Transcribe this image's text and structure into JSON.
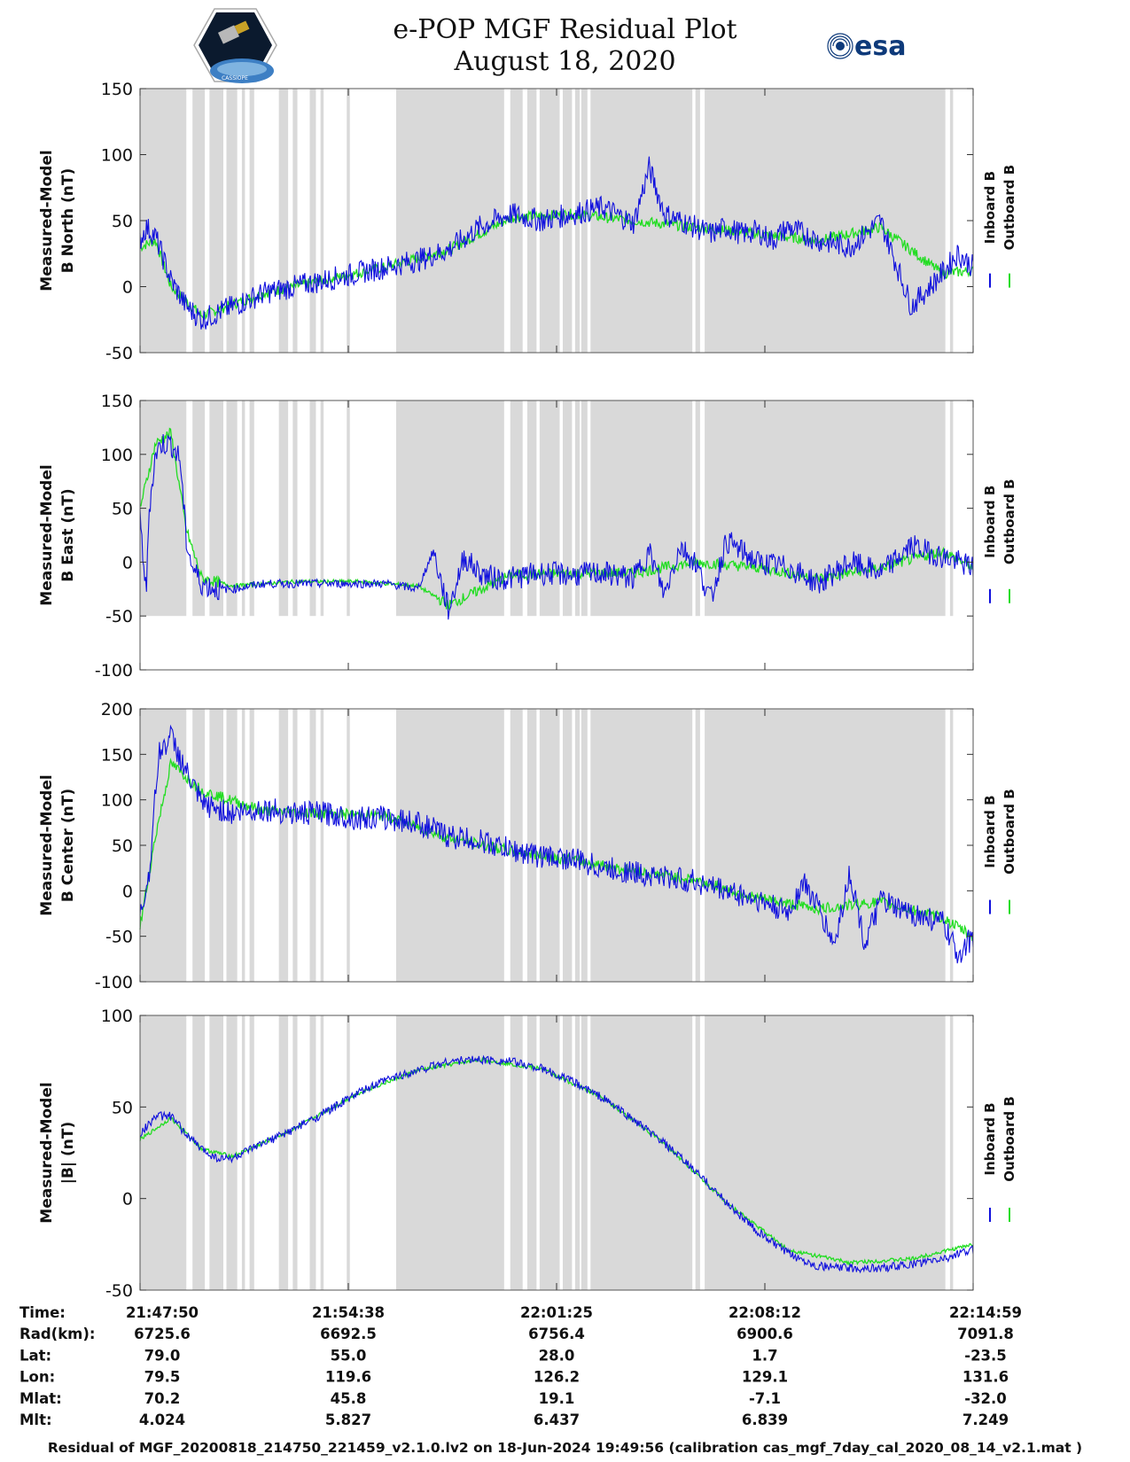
{
  "header": {
    "title_line1": "e-POP MGF Residual Plot",
    "title_line2": "August 18, 2020",
    "esa_logo_text": "esa",
    "left_logo_text": "CASSIOPE"
  },
  "legend_labels": [
    "Inboard B",
    "Outboard B"
  ],
  "colors": {
    "inboard": "#1010dd",
    "outboard": "#22dd22",
    "shade": "#d9d9d9",
    "frame": "#555555"
  },
  "chart_data": [
    {
      "type": "line",
      "ylabel_line1": "Measured-Model",
      "ylabel_line2": "B North (nT)",
      "ylim": [
        -50,
        150
      ],
      "yticks": [
        -50,
        0,
        50,
        100,
        150
      ],
      "series": [
        {
          "name": "Inboard B",
          "x": [
            0,
            0.2,
            0.5,
            1,
            1.5,
            2,
            2.5,
            3,
            4,
            5,
            6,
            7,
            8,
            9,
            10,
            11,
            11.5,
            12,
            13,
            14,
            15,
            16,
            16.5,
            17,
            17.5,
            18,
            18.5,
            19,
            19.5,
            20,
            20.5,
            21,
            22,
            23,
            24,
            25,
            26,
            26.5,
            27
          ],
          "y": [
            35,
            45,
            38,
            5,
            -15,
            -25,
            -20,
            -15,
            -5,
            0,
            5,
            10,
            15,
            20,
            28,
            45,
            50,
            55,
            50,
            55,
            60,
            48,
            90,
            55,
            50,
            45,
            40,
            45,
            40,
            42,
            35,
            45,
            35,
            30,
            50,
            -15,
            10,
            25,
            15
          ]
        },
        {
          "name": "Outboard B",
          "x": [
            0,
            0.5,
            1,
            2,
            4,
            6,
            8,
            10,
            12,
            14,
            16,
            18,
            20,
            22,
            24,
            26,
            27
          ],
          "y": [
            30,
            35,
            0,
            -22,
            -5,
            5,
            15,
            28,
            52,
            55,
            50,
            45,
            40,
            35,
            45,
            10,
            12
          ]
        }
      ]
    },
    {
      "type": "line",
      "ylabel_line1": "Measured-Model",
      "ylabel_line2": "B East (nT)",
      "ylim": [
        -100,
        150
      ],
      "yticks": [
        -100,
        -50,
        0,
        50,
        100,
        150
      ],
      "series": [
        {
          "name": "Inboard B",
          "x": [
            0,
            0.2,
            0.3,
            0.5,
            0.7,
            1,
            1.3,
            1.5,
            1.7,
            2,
            2.5,
            3,
            4,
            5,
            6,
            7,
            8,
            9,
            9.5,
            10,
            10.5,
            11,
            11.5,
            12,
            13,
            14,
            15,
            16,
            16.5,
            17,
            17.5,
            18,
            18.5,
            19,
            20,
            21,
            22,
            23,
            24,
            25,
            26,
            27
          ],
          "y": [
            40,
            -30,
            50,
            100,
            110,
            110,
            95,
            20,
            -5,
            -20,
            -25,
            -25,
            -20,
            -20,
            -20,
            -20,
            -20,
            -25,
            10,
            -45,
            5,
            -10,
            -15,
            -15,
            -10,
            -12,
            -10,
            -15,
            10,
            -30,
            15,
            0,
            -35,
            20,
            0,
            -5,
            -20,
            0,
            -10,
            15,
            5,
            -5
          ]
        },
        {
          "name": "Outboard B",
          "x": [
            0,
            0.5,
            1,
            1.5,
            2,
            3,
            5,
            7,
            9,
            10,
            12,
            14,
            16,
            18,
            20,
            22,
            24,
            26,
            27
          ],
          "y": [
            50,
            110,
            120,
            30,
            -15,
            -22,
            -18,
            -18,
            -22,
            -40,
            -12,
            -10,
            -10,
            0,
            -5,
            -15,
            -5,
            10,
            -5
          ]
        }
      ]
    },
    {
      "type": "line",
      "ylabel_line1": "Measured-Model",
      "ylabel_line2": "B Center (nT)",
      "ylim": [
        -100,
        200
      ],
      "yticks": [
        -100,
        -50,
        0,
        50,
        100,
        150,
        200
      ],
      "series": [
        {
          "name": "Inboard B",
          "x": [
            0,
            0.3,
            0.6,
            1,
            1.5,
            2,
            3,
            4,
            5,
            6,
            7,
            8,
            9,
            10,
            11,
            12,
            13,
            14,
            15,
            16,
            17,
            18,
            19,
            20,
            21,
            21.5,
            22,
            22.5,
            23,
            23.5,
            24,
            24.5,
            25,
            25.5,
            26,
            26.5,
            27
          ],
          "y": [
            -30,
            20,
            150,
            170,
            130,
            95,
            85,
            90,
            85,
            85,
            80,
            80,
            75,
            60,
            55,
            45,
            38,
            35,
            25,
            20,
            15,
            10,
            0,
            -10,
            -25,
            10,
            -20,
            -60,
            20,
            -60,
            -10,
            -20,
            -25,
            -30,
            -35,
            -70,
            -50
          ]
        },
        {
          "name": "Outboard B",
          "x": [
            0,
            0.5,
            1,
            2,
            4,
            6,
            8,
            10,
            12,
            14,
            16,
            18,
            20,
            22,
            24,
            26,
            27
          ],
          "y": [
            -40,
            60,
            140,
            110,
            88,
            85,
            82,
            58,
            44,
            34,
            22,
            12,
            -8,
            -20,
            -12,
            -30,
            -50
          ]
        }
      ]
    },
    {
      "type": "line",
      "ylabel_line1": "Measured-Model",
      "ylabel_line2": "|B| (nT)",
      "ylim": [
        -50,
        100
      ],
      "yticks": [
        -50,
        0,
        50,
        100
      ],
      "series": [
        {
          "name": "Inboard B",
          "x": [
            0,
            0.5,
            1,
            1.5,
            2,
            2.5,
            3,
            4,
            5,
            6,
            7,
            8,
            9,
            10,
            11,
            12,
            13,
            14,
            15,
            16,
            17,
            18,
            19,
            20,
            21,
            22,
            23,
            24,
            25,
            26,
            27
          ],
          "y": [
            35,
            45,
            45,
            35,
            27,
            22,
            22,
            30,
            38,
            47,
            57,
            65,
            70,
            75,
            76,
            75,
            71,
            64,
            55,
            43,
            30,
            15,
            -2,
            -18,
            -30,
            -37,
            -38,
            -38,
            -36,
            -33,
            -28
          ]
        },
        {
          "name": "Outboard B",
          "x": [
            0,
            1,
            2,
            3,
            5,
            7,
            9,
            11,
            13,
            15,
            17,
            19,
            21,
            23,
            25,
            27
          ],
          "y": [
            32,
            44,
            27,
            23,
            38,
            57,
            70,
            76,
            71,
            55,
            30,
            -2,
            -28,
            -35,
            -33,
            -25
          ]
        }
      ]
    }
  ],
  "shared_x": {
    "range": [
      0,
      27
    ],
    "shade_intervals": [
      [
        0,
        1.5
      ],
      [
        1.7,
        2.1
      ],
      [
        2.25,
        2.7
      ],
      [
        2.8,
        3.15
      ],
      [
        3.3,
        3.4
      ],
      [
        3.55,
        3.7
      ],
      [
        4.5,
        4.8
      ],
      [
        4.95,
        5.1
      ],
      [
        5.5,
        5.7
      ],
      [
        5.85,
        5.95
      ],
      [
        6.7,
        6.8
      ],
      [
        8.3,
        11.8
      ],
      [
        12.0,
        12.4
      ],
      [
        12.55,
        12.85
      ],
      [
        12.95,
        13.6
      ],
      [
        13.7,
        14.0
      ],
      [
        14.1,
        14.25
      ],
      [
        14.3,
        14.5
      ],
      [
        14.6,
        17.9
      ],
      [
        18.0,
        18.15
      ],
      [
        18.3,
        26.1
      ],
      [
        26.25,
        26.35
      ]
    ],
    "major_ticks": [
      0,
      6.75,
      13.5,
      20.25,
      27
    ]
  },
  "footer_table": {
    "row_labels": [
      "Time:",
      "Rad(km):",
      "Lat:",
      "Lon:",
      "Mlat:",
      "Mlt:"
    ],
    "columns": [
      [
        "21:47:50",
        "6725.6",
        "79.0",
        "79.5",
        "70.2",
        "4.024"
      ],
      [
        "21:54:38",
        "6692.5",
        "55.0",
        "119.6",
        "45.8",
        "5.827"
      ],
      [
        "22:01:25",
        "6756.4",
        "28.0",
        "126.2",
        "19.1",
        "6.437"
      ],
      [
        "22:08:12",
        "6900.6",
        "1.7",
        "129.1",
        "-7.1",
        "6.839"
      ],
      [
        "22:14:59",
        "7091.8",
        "-23.5",
        "131.6",
        "-32.0",
        "7.249"
      ]
    ]
  },
  "footer": "Residual of MGF_20200818_214750_221459_v2.1.0.lv2 on 18-Jun-2024 19:49:56 (calibration cas_mgf_7day_cal_2020_08_14_v2.1.mat )"
}
